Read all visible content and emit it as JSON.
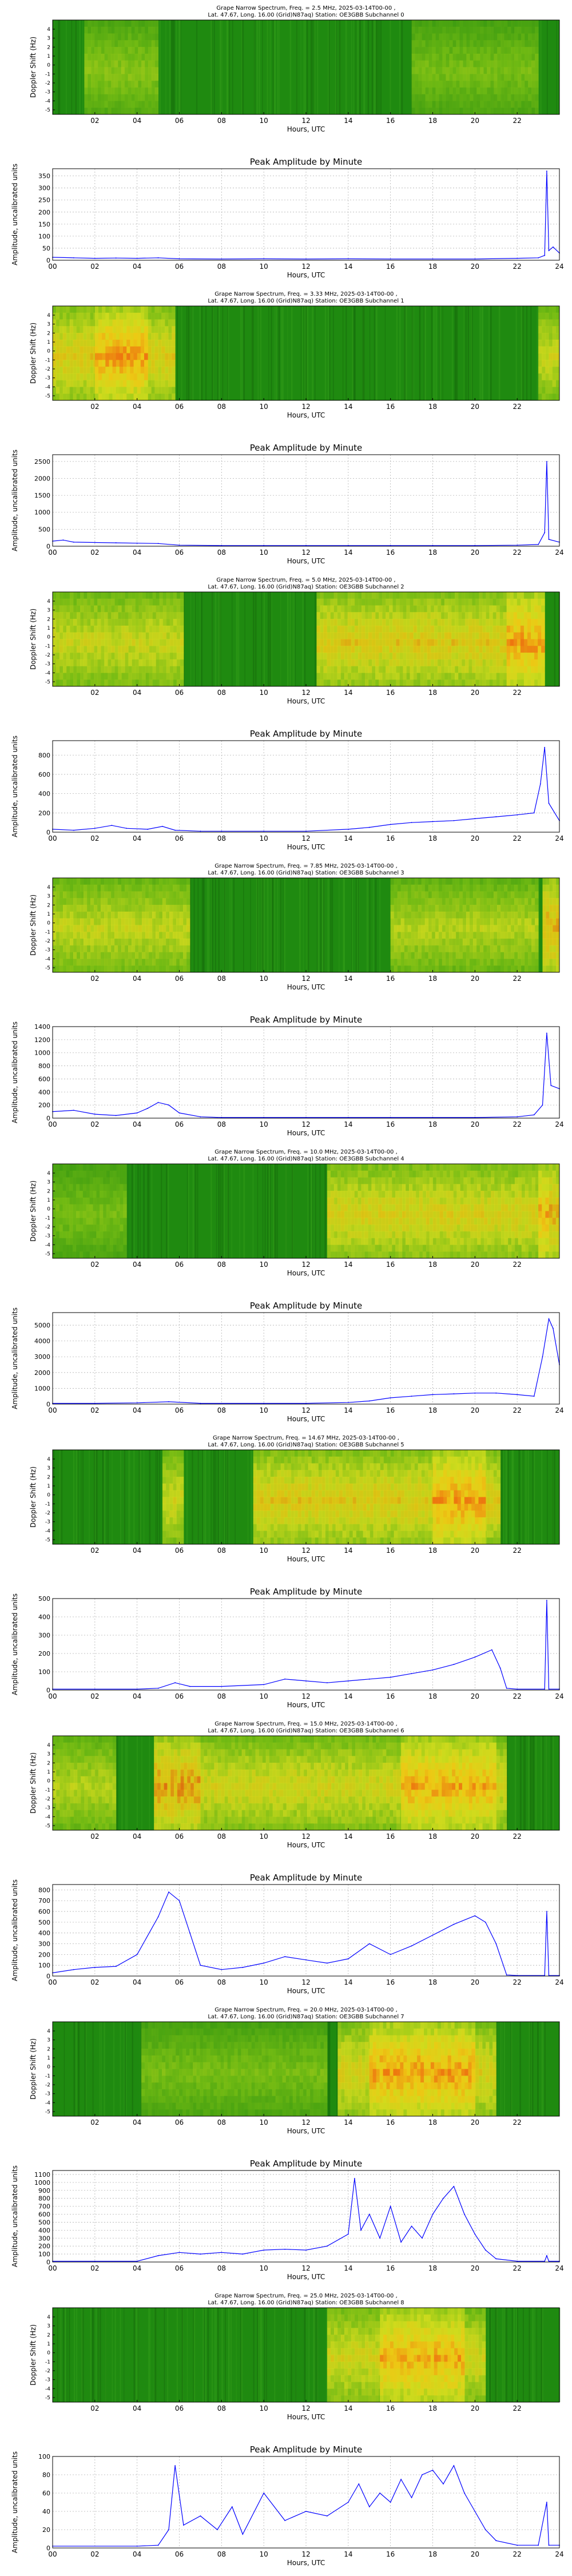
{
  "x_axis": {
    "label": "Hours, UTC",
    "spectrum_ticks": [
      "02",
      "04",
      "06",
      "08",
      "10",
      "12",
      "14",
      "16",
      "18",
      "20",
      "22"
    ],
    "amplitude_ticks": [
      "00",
      "02",
      "04",
      "06",
      "08",
      "10",
      "12",
      "14",
      "16",
      "18",
      "20",
      "22",
      "24"
    ]
  },
  "spectrogram_ylabel": "Doppler Shift (Hz)",
  "spectrogram_yticks": [
    "-5",
    "-4",
    "-3",
    "-2",
    "-1",
    "0",
    "1",
    "2",
    "3",
    "4"
  ],
  "amplitude_title": "Peak Amplitude by Minute",
  "amplitude_ylabel": "Amplitude, uncalibrated units",
  "colors": {
    "line": "#0000ff",
    "spec_background": "#1f8a10",
    "spec_mid": "#c8d820",
    "spec_hot": "#f07010",
    "grid": "#b0b0b0"
  },
  "chart_data": [
    {
      "type": "heatmap",
      "title_line1": "Grape Narrow Spectrum, Freq. = 2.5 MHz, 2025-03-14T00-00 ,",
      "title_line2": "Lat.  47.67, Long.  16.00 (Grid)N87aq) Station: OE3GBB Subchannel 0",
      "x_range": [
        0,
        24
      ],
      "y_range": [
        -5,
        5
      ],
      "features": [
        {
          "x0": 1.5,
          "x1": 5.0,
          "intensity": 0.35
        },
        {
          "x0": 17.0,
          "x1": 23.0,
          "intensity": 0.3
        }
      ],
      "amplitude": {
        "type": "line",
        "ylim": [
          0,
          380
        ],
        "yticks": [
          "0",
          "50",
          "100",
          "150",
          "200",
          "250",
          "300",
          "350"
        ],
        "x": [
          0,
          1,
          2,
          3,
          4,
          5,
          6,
          8,
          10,
          12,
          14,
          16,
          18,
          20,
          22,
          23.0,
          23.3,
          23.4,
          23.5,
          23.7,
          24
        ],
        "y": [
          12,
          10,
          8,
          9,
          8,
          10,
          6,
          5,
          6,
          5,
          6,
          5,
          5,
          5,
          8,
          10,
          20,
          370,
          40,
          55,
          30
        ]
      }
    },
    {
      "type": "heatmap",
      "title_line1": "Grape Narrow Spectrum, Freq. = 3.33 MHz, 2025-03-14T00-00 ,",
      "title_line2": "Lat.  47.67, Long.  16.00 (Grid)N87aq) Station: OE3GBB Subchannel 1",
      "x_range": [
        0,
        24
      ],
      "y_range": [
        -5,
        5
      ],
      "features": [
        {
          "x0": 0.0,
          "x1": 5.8,
          "intensity": 0.75
        },
        {
          "x0": 2.0,
          "x1": 4.5,
          "intensity": 0.95
        },
        {
          "x0": 23.0,
          "x1": 24.0,
          "intensity": 0.6
        }
      ],
      "amplitude": {
        "type": "line",
        "ylim": [
          0,
          2700
        ],
        "yticks": [
          "0",
          "500",
          "1000",
          "1500",
          "2000",
          "2500"
        ],
        "x": [
          0,
          0.5,
          1,
          2,
          3,
          4,
          5,
          6,
          8,
          10,
          12,
          14,
          16,
          18,
          20,
          22,
          23.0,
          23.3,
          23.4,
          23.5,
          24
        ],
        "y": [
          150,
          180,
          120,
          110,
          100,
          90,
          80,
          30,
          20,
          20,
          20,
          20,
          20,
          20,
          20,
          30,
          50,
          400,
          2500,
          200,
          120
        ]
      }
    },
    {
      "type": "heatmap",
      "title_line1": "Grape Narrow Spectrum, Freq. = 5.0 MHz, 2025-03-14T00-00 ,",
      "title_line2": "Lat.  47.67, Long.  16.00 (Grid)N87aq) Station: OE3GBB Subchannel 2",
      "x_range": [
        0,
        24
      ],
      "y_range": [
        -5,
        5
      ],
      "features": [
        {
          "x0": 0.0,
          "x1": 6.2,
          "intensity": 0.6
        },
        {
          "x0": 12.5,
          "x1": 23.3,
          "intensity": 0.75
        },
        {
          "x0": 21.5,
          "x1": 23.3,
          "intensity": 0.95
        }
      ],
      "amplitude": {
        "type": "line",
        "ylim": [
          0,
          950
        ],
        "yticks": [
          "0",
          "200",
          "400",
          "600",
          "800"
        ],
        "x": [
          0,
          1,
          2,
          2.8,
          3.5,
          4.5,
          5.2,
          5.8,
          7,
          8,
          10,
          12,
          14,
          15,
          16,
          17,
          18,
          19,
          20,
          21,
          22,
          22.8,
          23.1,
          23.3,
          23.5,
          24
        ],
        "y": [
          30,
          20,
          40,
          70,
          40,
          30,
          60,
          20,
          10,
          10,
          10,
          10,
          30,
          50,
          80,
          100,
          110,
          120,
          140,
          160,
          180,
          200,
          500,
          880,
          300,
          120
        ]
      }
    },
    {
      "type": "heatmap",
      "title_line1": "Grape Narrow Spectrum, Freq. = 7.85 MHz, 2025-03-14T00-00 ,",
      "title_line2": "Lat.  47.67, Long.  16.00 (Grid)N87aq) Station: OE3GBB Subchannel 3",
      "x_range": [
        0,
        24
      ],
      "y_range": [
        -5,
        5
      ],
      "features": [
        {
          "x0": 0.0,
          "x1": 6.5,
          "intensity": 0.55
        },
        {
          "x0": 16.0,
          "x1": 23.0,
          "intensity": 0.5
        },
        {
          "x0": 23.2,
          "x1": 24.0,
          "intensity": 0.9
        }
      ],
      "amplitude": {
        "type": "line",
        "ylim": [
          0,
          1400
        ],
        "yticks": [
          "0",
          "200",
          "400",
          "600",
          "800",
          "1000",
          "1200",
          "1400"
        ],
        "x": [
          0,
          1,
          2,
          3,
          4,
          4.5,
          5,
          5.5,
          6,
          7,
          8,
          10,
          12,
          14,
          16,
          18,
          20,
          22,
          22.8,
          23.2,
          23.4,
          23.6,
          24
        ],
        "y": [
          100,
          120,
          60,
          40,
          80,
          150,
          240,
          200,
          80,
          20,
          10,
          10,
          10,
          10,
          10,
          10,
          10,
          20,
          50,
          200,
          1300,
          500,
          450
        ]
      }
    },
    {
      "type": "heatmap",
      "title_line1": "Grape Narrow Spectrum, Freq. = 10.0 MHz, 2025-03-14T00-00 ,",
      "title_line2": "Lat.  47.67, Long.  16.00 (Grid)N87aq) Station: OE3GBB Subchannel 4",
      "x_range": [
        0,
        24
      ],
      "y_range": [
        -5,
        5
      ],
      "features": [
        {
          "x0": 0.0,
          "x1": 3.5,
          "intensity": 0.3
        },
        {
          "x0": 13.0,
          "x1": 23.5,
          "intensity": 0.7
        },
        {
          "x0": 23.0,
          "x1": 24.0,
          "intensity": 0.9
        }
      ],
      "amplitude": {
        "type": "line",
        "ylim": [
          0,
          5800
        ],
        "yticks": [
          "0",
          "1000",
          "2000",
          "3000",
          "4000",
          "5000"
        ],
        "x": [
          0,
          2,
          4,
          5.5,
          7,
          10,
          12,
          14,
          15,
          16,
          17,
          18,
          19,
          20,
          21,
          22,
          22.8,
          23.2,
          23.5,
          23.7,
          24
        ],
        "y": [
          50,
          50,
          80,
          150,
          50,
          50,
          50,
          100,
          200,
          400,
          500,
          600,
          650,
          700,
          700,
          600,
          500,
          3000,
          5400,
          4800,
          2500
        ]
      }
    },
    {
      "type": "heatmap",
      "title_line1": "Grape Narrow Spectrum, Freq. = 14.67 MHz, 2025-03-14T00-00 ,",
      "title_line2": "Lat.  47.67, Long.  16.00 (Grid)N87aq) Station: OE3GBB Subchannel 5",
      "x_range": [
        0,
        24
      ],
      "y_range": [
        -5,
        5
      ],
      "features": [
        {
          "x0": 5.2,
          "x1": 6.2,
          "intensity": 0.6
        },
        {
          "x0": 9.5,
          "x1": 21.2,
          "intensity": 0.75
        },
        {
          "x0": 18.0,
          "x1": 20.5,
          "intensity": 0.95
        }
      ],
      "amplitude": {
        "type": "line",
        "ylim": [
          0,
          500
        ],
        "yticks": [
          "0",
          "100",
          "200",
          "300",
          "400",
          "500"
        ],
        "x": [
          0,
          2,
          4,
          5,
          5.8,
          6.5,
          8,
          10,
          11,
          12,
          13,
          14,
          15,
          16,
          17,
          18,
          19,
          20,
          20.8,
          21.2,
          21.5,
          22,
          23.3,
          23.4,
          23.5,
          24
        ],
        "y": [
          5,
          5,
          5,
          10,
          40,
          20,
          20,
          30,
          60,
          50,
          40,
          50,
          60,
          70,
          90,
          110,
          140,
          180,
          220,
          120,
          10,
          5,
          5,
          490,
          5,
          5
        ]
      }
    },
    {
      "type": "heatmap",
      "title_line1": "Grape Narrow Spectrum, Freq. = 15.0 MHz, 2025-03-14T00-00 ,",
      "title_line2": "Lat.  47.67, Long.  16.00 (Grid)N87aq) Station: OE3GBB Subchannel 6",
      "x_range": [
        0,
        24
      ],
      "y_range": [
        -5,
        5
      ],
      "features": [
        {
          "x0": 0.0,
          "x1": 3.0,
          "intensity": 0.5
        },
        {
          "x0": 4.8,
          "x1": 7.0,
          "intensity": 0.95
        },
        {
          "x0": 7.0,
          "x1": 21.5,
          "intensity": 0.65
        },
        {
          "x0": 16.5,
          "x1": 21.0,
          "intensity": 0.9
        }
      ],
      "amplitude": {
        "type": "line",
        "ylim": [
          0,
          850
        ],
        "yticks": [
          "0",
          "100",
          "200",
          "300",
          "400",
          "500",
          "600",
          "700",
          "800"
        ],
        "x": [
          0,
          1,
          2,
          3,
          4,
          5,
          5.5,
          6,
          6.5,
          7,
          8,
          9,
          10,
          11,
          12,
          13,
          14,
          15,
          16,
          17,
          18,
          19,
          20,
          20.5,
          21,
          21.5,
          22,
          23.3,
          23.4,
          23.5,
          24
        ],
        "y": [
          30,
          60,
          80,
          90,
          200,
          550,
          780,
          700,
          400,
          100,
          60,
          80,
          120,
          180,
          150,
          120,
          160,
          300,
          200,
          280,
          380,
          480,
          560,
          500,
          300,
          10,
          5,
          5,
          600,
          5,
          5
        ]
      }
    },
    {
      "type": "heatmap",
      "title_line1": "Grape Narrow Spectrum, Freq. = 20.0 MHz, 2025-03-14T00-00 ,",
      "title_line2": "Lat.  47.67, Long.  16.00 (Grid)N87aq) Station: OE3GBB Subchannel 7",
      "x_range": [
        0,
        24
      ],
      "y_range": [
        -5,
        5
      ],
      "features": [
        {
          "x0": 4.2,
          "x1": 13.0,
          "intensity": 0.3
        },
        {
          "x0": 13.5,
          "x1": 21.0,
          "intensity": 0.7
        },
        {
          "x0": 15.0,
          "x1": 20.0,
          "intensity": 0.95
        }
      ],
      "amplitude": {
        "type": "line",
        "ylim": [
          0,
          1150
        ],
        "yticks": [
          "0",
          "100",
          "200",
          "300",
          "400",
          "500",
          "600",
          "700",
          "800",
          "900",
          "1000",
          "1100"
        ],
        "x": [
          0,
          2,
          4,
          5,
          6,
          7,
          8,
          9,
          10,
          11,
          12,
          13,
          14,
          14.3,
          14.6,
          15,
          15.5,
          16,
          16.5,
          17,
          17.5,
          18,
          18.5,
          19,
          19.5,
          20,
          20.5,
          21,
          22,
          23.3,
          23.4,
          23.5,
          24
        ],
        "y": [
          10,
          10,
          10,
          80,
          120,
          100,
          120,
          100,
          150,
          160,
          150,
          200,
          350,
          1050,
          400,
          600,
          300,
          700,
          250,
          450,
          300,
          600,
          800,
          950,
          600,
          350,
          150,
          40,
          10,
          10,
          80,
          10,
          10
        ]
      }
    },
    {
      "type": "heatmap",
      "title_line1": "Grape Narrow Spectrum, Freq. = 25.0 MHz, 2025-03-14T00-00 ,",
      "title_line2": "Lat.  47.67, Long.  16.00 (Grid)N87aq) Station: OE3GBB Subchannel 8",
      "x_range": [
        0,
        24
      ],
      "y_range": [
        -5,
        5
      ],
      "features": [
        {
          "x0": 13.0,
          "x1": 20.5,
          "intensity": 0.65
        },
        {
          "x0": 15.5,
          "x1": 19.5,
          "intensity": 0.9
        }
      ],
      "amplitude": {
        "type": "line",
        "ylim": [
          0,
          100
        ],
        "yticks": [
          "0",
          "20",
          "40",
          "60",
          "80",
          "100"
        ],
        "x": [
          0,
          4,
          5,
          5.5,
          5.8,
          6.2,
          7,
          7.8,
          8.5,
          9,
          10,
          11,
          12,
          13,
          14,
          14.5,
          15,
          15.5,
          16,
          16.5,
          17,
          17.5,
          18,
          18.5,
          19,
          19.5,
          20,
          20.5,
          21,
          22,
          23,
          23.4,
          23.5,
          24
        ],
        "y": [
          2,
          2,
          3,
          20,
          90,
          25,
          35,
          20,
          45,
          15,
          60,
          30,
          40,
          35,
          50,
          70,
          45,
          60,
          50,
          75,
          55,
          80,
          85,
          70,
          90,
          60,
          40,
          20,
          8,
          3,
          3,
          50,
          3,
          3
        ]
      }
    }
  ]
}
